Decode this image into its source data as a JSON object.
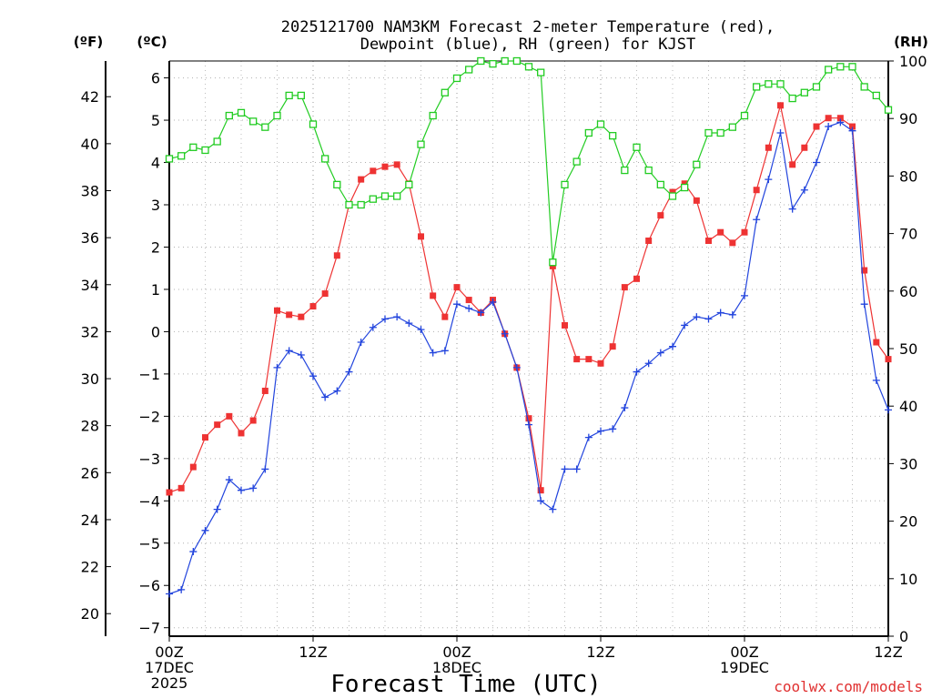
{
  "chart_data": {
    "type": "line",
    "title": [
      "2025121700 NAM3KM Forecast 2-meter Temperature (red),",
      "Dewpoint (blue), RH (green) for KJST"
    ],
    "xlabel": "Forecast Time (UTC)",
    "credit": "coolwx.com/models",
    "units": {
      "fahrenheit": "(ºF)",
      "celsius": "(ºC)",
      "rh": "(RH)"
    },
    "x_hours_range": [
      0,
      60
    ],
    "x_ticks": [
      {
        "hour": 0,
        "lines": [
          "00Z",
          "17DEC",
          "2025"
        ]
      },
      {
        "hour": 12,
        "lines": [
          "12Z"
        ]
      },
      {
        "hour": 24,
        "lines": [
          "00Z",
          "18DEC"
        ]
      },
      {
        "hour": 36,
        "lines": [
          "12Z"
        ]
      },
      {
        "hour": 48,
        "lines": [
          "00Z",
          "19DEC"
        ]
      },
      {
        "hour": 60,
        "lines": [
          "12Z"
        ]
      }
    ],
    "celsius_axis": {
      "range": [
        -7.2,
        6.4
      ],
      "ticks": [
        6,
        5,
        4,
        3,
        2,
        1,
        0,
        -1,
        -2,
        -3,
        -4,
        -5,
        -6,
        -7
      ]
    },
    "fahrenheit_axis": {
      "ticks": [
        42,
        40,
        38,
        36,
        34,
        32,
        30,
        28,
        26,
        24,
        22,
        20
      ]
    },
    "rh_axis": {
      "range": [
        0,
        100
      ],
      "ticks": [
        100,
        90,
        80,
        70,
        60,
        50,
        40,
        30,
        20,
        10,
        0
      ]
    },
    "series": [
      {
        "name": "Temperature",
        "color": "#ee3333",
        "marker": "filled-square",
        "axis": "celsius",
        "values": [
          -3.8,
          -3.7,
          -3.2,
          -2.5,
          -2.2,
          -2.0,
          -2.4,
          -2.1,
          -1.4,
          0.5,
          0.4,
          0.35,
          0.6,
          0.9,
          1.8,
          3.0,
          3.6,
          3.8,
          3.9,
          3.95,
          3.5,
          2.25,
          0.85,
          0.35,
          1.05,
          0.75,
          0.45,
          0.75,
          -0.05,
          -0.85,
          -2.05,
          -3.75,
          1.55,
          0.15,
          -0.65,
          -0.65,
          -0.75,
          -0.35,
          1.05,
          1.25,
          2.15,
          2.75,
          3.3,
          3.5,
          3.1,
          2.15,
          2.35,
          2.1,
          2.35,
          3.35,
          4.35,
          5.35,
          3.95,
          4.35,
          4.85,
          5.05,
          5.05,
          4.85,
          1.45,
          -0.25,
          -0.65
        ]
      },
      {
        "name": "Dewpoint",
        "color": "#2244dd",
        "marker": "plus",
        "axis": "celsius",
        "values": [
          -6.2,
          -6.1,
          -5.2,
          -4.7,
          -4.2,
          -3.5,
          -3.75,
          -3.7,
          -3.25,
          -0.85,
          -0.45,
          -0.55,
          -1.05,
          -1.55,
          -1.4,
          -0.95,
          -0.25,
          0.1,
          0.3,
          0.35,
          0.2,
          0.05,
          -0.5,
          -0.45,
          0.65,
          0.55,
          0.45,
          0.7,
          -0.05,
          -0.85,
          -2.2,
          -4.0,
          -4.2,
          -3.25,
          -3.25,
          -2.5,
          -2.35,
          -2.3,
          -1.8,
          -0.95,
          -0.75,
          -0.5,
          -0.35,
          0.15,
          0.35,
          0.3,
          0.45,
          0.4,
          0.85,
          2.65,
          3.6,
          4.7,
          2.9,
          3.35,
          4.0,
          4.85,
          4.95,
          4.75,
          0.65,
          -1.15,
          -1.85
        ]
      },
      {
        "name": "RH",
        "color": "#22cc22",
        "marker": "open-square",
        "axis": "rh",
        "values": [
          83,
          83.5,
          85,
          84.5,
          86,
          90.5,
          91,
          89.5,
          88.5,
          90.5,
          94,
          94,
          89,
          83,
          78.5,
          75,
          75,
          76,
          76.5,
          76.5,
          78.5,
          85.5,
          90.5,
          94.5,
          97,
          98.5,
          100,
          99.5,
          100,
          100,
          99,
          98,
          65,
          78.5,
          82.5,
          87.5,
          89,
          87,
          81,
          85,
          81,
          78.5,
          76.5,
          78,
          82,
          87.5,
          87.5,
          88.5,
          90.5,
          95.5,
          96,
          96,
          93.5,
          94.5,
          95.5,
          98.5,
          99,
          99,
          95.5,
          94,
          91.5
        ]
      }
    ]
  }
}
